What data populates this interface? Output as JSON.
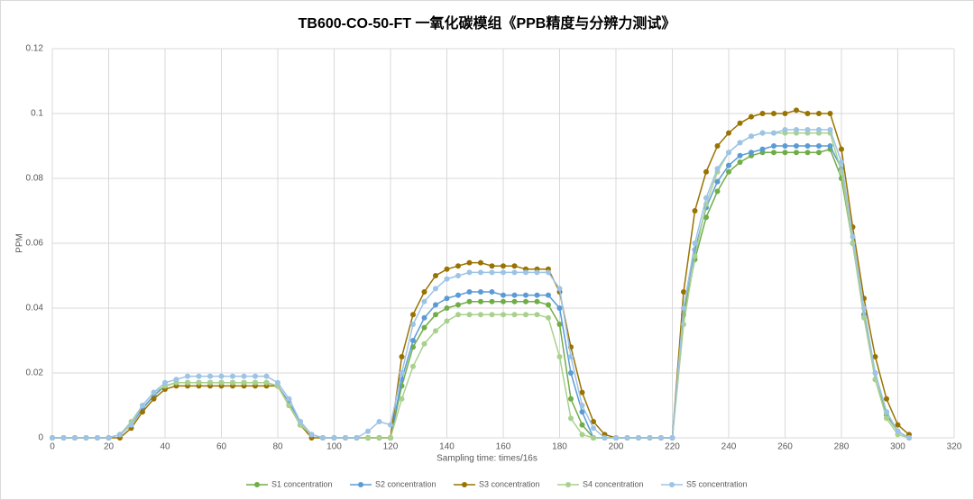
{
  "chart_data": {
    "type": "line",
    "title": "TB600-CO-50-FT 一氧化碳模组《PPB精度与分辨力测试》",
    "x_label": "Sampling time: times/16s",
    "y_label": "PPM",
    "x": [
      0,
      4,
      8,
      12,
      16,
      20,
      24,
      28,
      32,
      36,
      40,
      44,
      48,
      52,
      56,
      60,
      64,
      68,
      72,
      76,
      80,
      84,
      88,
      92,
      96,
      100,
      104,
      108,
      112,
      116,
      120,
      124,
      128,
      132,
      136,
      140,
      144,
      148,
      152,
      156,
      160,
      164,
      168,
      172,
      176,
      180,
      184,
      188,
      192,
      196,
      200,
      204,
      208,
      212,
      216,
      220,
      224,
      228,
      232,
      236,
      240,
      244,
      248,
      252,
      256,
      260,
      264,
      268,
      272,
      276,
      280,
      284,
      288,
      292,
      296,
      300,
      304
    ],
    "series": [
      {
        "name": "S1 concentration",
        "color": "#70ad47",
        "values": [
          0,
          0,
          0,
          0,
          0,
          0,
          0.001,
          0.004,
          0.009,
          0.013,
          0.016,
          0.017,
          0.017,
          0.017,
          0.017,
          0.017,
          0.017,
          0.017,
          0.017,
          0.017,
          0.016,
          0.01,
          0.004,
          0.001,
          0,
          0,
          0,
          0,
          0,
          0,
          0,
          0.016,
          0.028,
          0.034,
          0.038,
          0.04,
          0.041,
          0.042,
          0.042,
          0.042,
          0.042,
          0.042,
          0.042,
          0.042,
          0.041,
          0.035,
          0.012,
          0.004,
          0,
          0,
          0,
          0,
          0,
          0,
          0,
          0,
          0.038,
          0.055,
          0.068,
          0.076,
          0.082,
          0.085,
          0.087,
          0.088,
          0.088,
          0.088,
          0.088,
          0.088,
          0.088,
          0.089,
          0.08,
          0.06,
          0.038,
          0.018,
          0.007,
          0.002,
          0
        ]
      },
      {
        "name": "S2 concentration",
        "color": "#5b9bd5",
        "values": [
          0,
          0,
          0,
          0,
          0,
          0,
          0.001,
          0.004,
          0.009,
          0.013,
          0.016,
          0.017,
          0.017,
          0.017,
          0.017,
          0.017,
          0.017,
          0.017,
          0.017,
          0.017,
          0.016,
          0.011,
          0.005,
          0.001,
          0,
          0,
          0,
          0,
          0,
          0,
          0,
          0.018,
          0.03,
          0.037,
          0.041,
          0.043,
          0.044,
          0.045,
          0.045,
          0.045,
          0.044,
          0.044,
          0.044,
          0.044,
          0.044,
          0.04,
          0.02,
          0.008,
          0,
          0,
          0,
          0,
          0,
          0,
          0,
          0,
          0.04,
          0.058,
          0.071,
          0.079,
          0.084,
          0.087,
          0.088,
          0.089,
          0.09,
          0.09,
          0.09,
          0.09,
          0.09,
          0.09,
          0.083,
          0.06,
          0.038,
          0.02,
          0.008,
          0.002,
          0
        ]
      },
      {
        "name": "S3 concentration",
        "color": "#997300",
        "values": [
          0,
          0,
          0,
          0,
          0,
          0,
          0,
          0.003,
          0.008,
          0.012,
          0.015,
          0.016,
          0.016,
          0.016,
          0.016,
          0.016,
          0.016,
          0.016,
          0.016,
          0.016,
          0.016,
          0.01,
          0.004,
          0,
          0,
          0,
          0,
          0,
          0,
          0,
          0,
          0.025,
          0.038,
          0.045,
          0.05,
          0.052,
          0.053,
          0.054,
          0.054,
          0.053,
          0.053,
          0.053,
          0.052,
          0.052,
          0.052,
          0.045,
          0.028,
          0.014,
          0.005,
          0.001,
          0,
          0,
          0,
          0,
          0,
          0,
          0.045,
          0.07,
          0.082,
          0.09,
          0.094,
          0.097,
          0.099,
          0.1,
          0.1,
          0.1,
          0.101,
          0.1,
          0.1,
          0.1,
          0.089,
          0.065,
          0.043,
          0.025,
          0.012,
          0.004,
          0.001
        ]
      },
      {
        "name": "S4 concentration",
        "color": "#a9d18e",
        "values": [
          0,
          0,
          0,
          0,
          0,
          0,
          0.001,
          0.005,
          0.01,
          0.014,
          0.016,
          0.017,
          0.017,
          0.017,
          0.017,
          0.017,
          0.017,
          0.017,
          0.017,
          0.017,
          0.016,
          0.01,
          0.004,
          0.001,
          0,
          0,
          0,
          0,
          0,
          0,
          0,
          0.012,
          0.022,
          0.029,
          0.033,
          0.036,
          0.038,
          0.038,
          0.038,
          0.038,
          0.038,
          0.038,
          0.038,
          0.038,
          0.037,
          0.025,
          0.006,
          0.001,
          0,
          0,
          0,
          0,
          0,
          0,
          0,
          0,
          0.035,
          0.056,
          0.072,
          0.082,
          0.088,
          0.091,
          0.093,
          0.094,
          0.094,
          0.094,
          0.094,
          0.094,
          0.094,
          0.094,
          0.082,
          0.06,
          0.037,
          0.018,
          0.006,
          0.001,
          0
        ]
      },
      {
        "name": "S5 concentration",
        "color": "#9dc3e6",
        "values": [
          0,
          0,
          0,
          0,
          0,
          0,
          0.001,
          0.004,
          0.01,
          0.014,
          0.017,
          0.018,
          0.019,
          0.019,
          0.019,
          0.019,
          0.019,
          0.019,
          0.019,
          0.019,
          0.017,
          0.012,
          0.005,
          0.001,
          0,
          0,
          0,
          0,
          0.002,
          0.005,
          0.004,
          0.02,
          0.035,
          0.042,
          0.046,
          0.049,
          0.05,
          0.051,
          0.051,
          0.051,
          0.051,
          0.051,
          0.051,
          0.051,
          0.051,
          0.046,
          0.025,
          0.01,
          0.003,
          0,
          0,
          0,
          0,
          0,
          0,
          0,
          0.04,
          0.06,
          0.074,
          0.083,
          0.088,
          0.091,
          0.093,
          0.094,
          0.094,
          0.095,
          0.095,
          0.095,
          0.095,
          0.095,
          0.085,
          0.062,
          0.04,
          0.02,
          0.008,
          0.002,
          0
        ]
      }
    ],
    "xlim": [
      0,
      320
    ],
    "xticks": [
      0,
      20,
      40,
      60,
      80,
      100,
      120,
      140,
      160,
      180,
      200,
      220,
      240,
      260,
      280,
      300,
      320
    ],
    "ylim": [
      0,
      0.12
    ],
    "yticks": [
      0,
      0.02,
      0.04,
      0.06,
      0.08,
      0.1,
      0.12
    ],
    "grid": true,
    "legend": "bottom"
  }
}
